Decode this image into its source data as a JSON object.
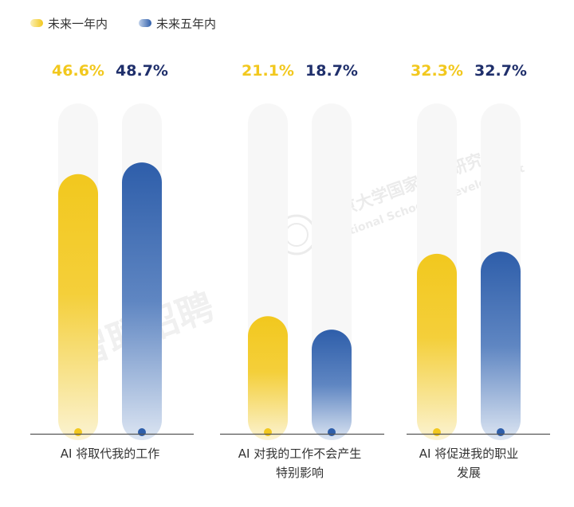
{
  "chart_data": {
    "type": "bar",
    "categories": [
      [
        "AI 将取代我的工作"
      ],
      [
        "AI 对我的工作不会产生",
        "特别影响"
      ],
      [
        "AI 将促进我的职业",
        "发展"
      ]
    ],
    "series": [
      {
        "name": "未来一年内",
        "values": [
          46.6,
          21.1,
          32.3
        ],
        "labels": [
          "46.6%",
          "21.1%",
          "32.3%"
        ],
        "color": "#F2C81E",
        "label_color": "#F2C81E"
      },
      {
        "name": "未来五年内",
        "values": [
          48.7,
          18.7,
          32.7
        ],
        "labels": [
          "48.7%",
          "18.7%",
          "32.7%"
        ],
        "color": "#2E5EAA",
        "label_color": "#1F2F6B"
      }
    ],
    "ylim": [
      0,
      60
    ],
    "legend": "top-left",
    "grid": false
  },
  "watermarks": {
    "left": "智联招聘",
    "right_cn": "北京大学国家发展研究院",
    "right_en": "National School of Development"
  }
}
